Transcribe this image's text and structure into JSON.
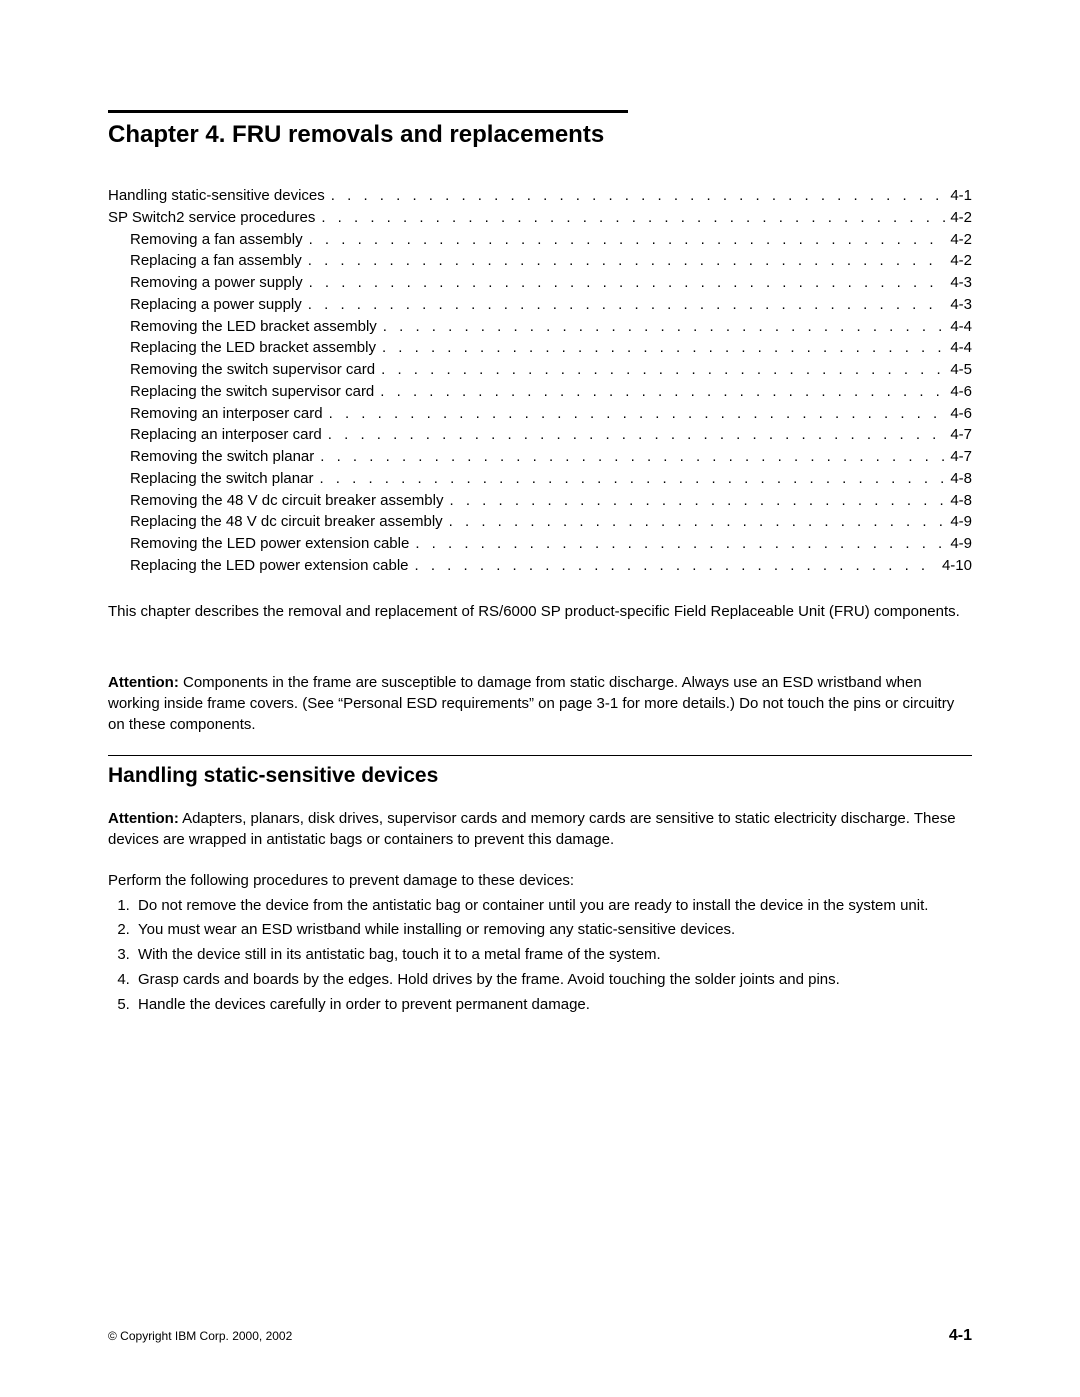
{
  "chapter": {
    "title": "Chapter 4. FRU removals and replacements"
  },
  "toc": [
    {
      "label": "Handling static-sensitive devices",
      "page": "4-1",
      "indent": 0
    },
    {
      "label": "SP Switch2 service procedures",
      "page": "4-2",
      "indent": 0
    },
    {
      "label": "Removing a fan assembly",
      "page": "4-2",
      "indent": 1
    },
    {
      "label": "Replacing a fan assembly",
      "page": "4-2",
      "indent": 1
    },
    {
      "label": "Removing a power supply",
      "page": "4-3",
      "indent": 1
    },
    {
      "label": "Replacing a power supply",
      "page": "4-3",
      "indent": 1
    },
    {
      "label": "Removing the LED bracket assembly",
      "page": "4-4",
      "indent": 1
    },
    {
      "label": "Replacing the LED bracket assembly",
      "page": "4-4",
      "indent": 1
    },
    {
      "label": "Removing the switch supervisor card",
      "page": "4-5",
      "indent": 1
    },
    {
      "label": "Replacing the switch supervisor card",
      "page": "4-6",
      "indent": 1
    },
    {
      "label": "Removing an interposer card",
      "page": "4-6",
      "indent": 1
    },
    {
      "label": "Replacing an interposer card",
      "page": "4-7",
      "indent": 1
    },
    {
      "label": "Removing the switch planar",
      "page": "4-7",
      "indent": 1
    },
    {
      "label": "Replacing the switch planar",
      "page": "4-8",
      "indent": 1
    },
    {
      "label": "Removing the 48 V dc circuit breaker assembly",
      "page": "4-8",
      "indent": 1
    },
    {
      "label": "Replacing the 48 V dc circuit breaker assembly",
      "page": "4-9",
      "indent": 1
    },
    {
      "label": "Removing the LED power extension cable",
      "page": "4-9",
      "indent": 1
    },
    {
      "label": "Replacing the LED power extension cable",
      "page": "4-10",
      "indent": 1
    }
  ],
  "intro": "This chapter describes the removal and replacement of RS/6000 SP product-specific Field Replaceable Unit (FRU) components.",
  "attention1_label": "Attention:",
  "attention1_text": " Components in the frame are susceptible to damage from static discharge. Always use an ESD wristband when working inside frame covers. (See “Personal ESD requirements” on page 3-1 for more details.) Do not touch the pins or circuitry on these components.",
  "section": {
    "title": "Handling static-sensitive devices"
  },
  "attention2_label": "Attention:",
  "attention2_text": " Adapters, planars, disk drives, supervisor cards and memory cards are sensitive to static electricity discharge. These devices are wrapped in antistatic bags or containers to prevent this damage.",
  "proc_intro": "Perform the following procedures to prevent damage to these devices:",
  "procedures": [
    "Do not remove the device from the antistatic bag or container until you are ready to install the device in the system unit.",
    "You must wear an ESD wristband while installing or removing any static-sensitive devices.",
    "With the device still in its antistatic bag, touch it to a metal frame of the system.",
    "Grasp cards and boards by the edges. Hold drives by the frame. Avoid touching the solder joints and pins.",
    "Handle the devices carefully in order to prevent permanent damage."
  ],
  "footer": {
    "copyright": "© Copyright IBM Corp. 2000, 2002",
    "page": "4-1"
  }
}
